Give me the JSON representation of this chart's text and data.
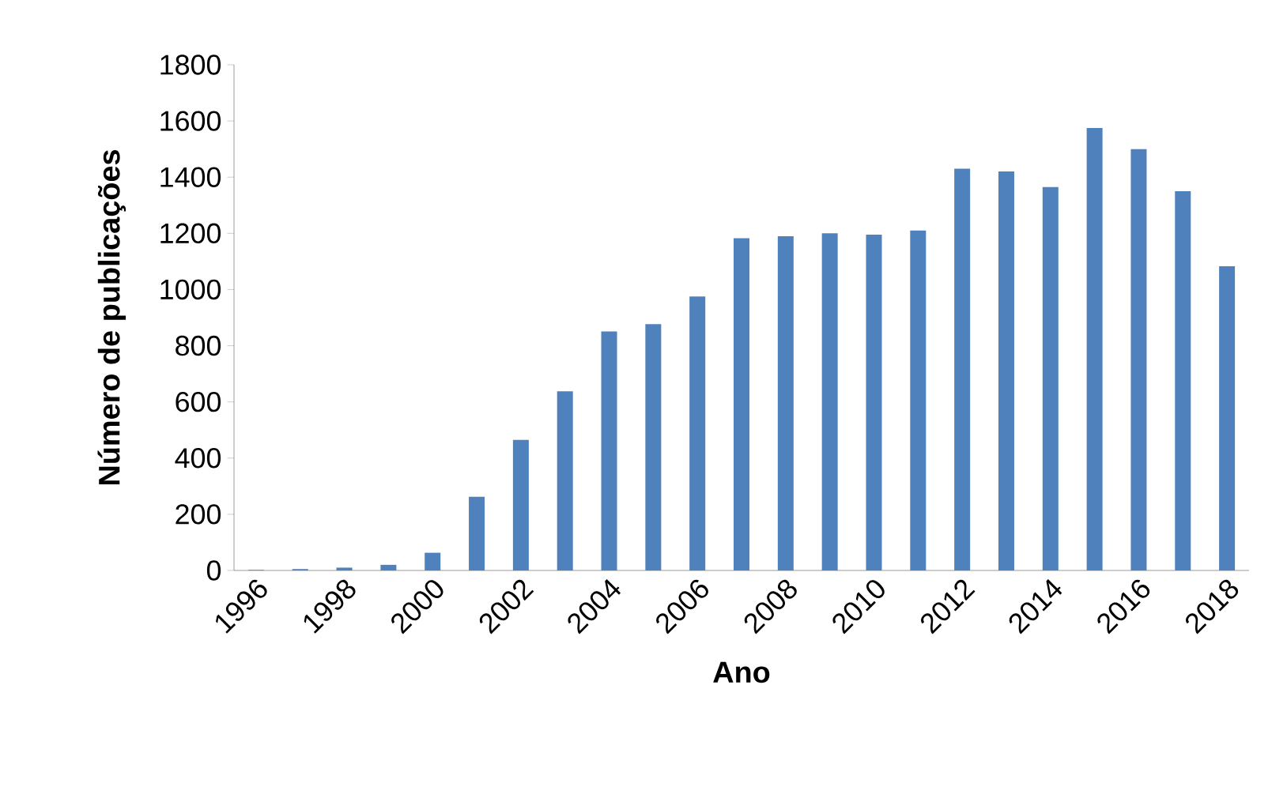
{
  "chart_data": {
    "type": "bar",
    "xlabel": "Ano",
    "ylabel": "Número de publicações",
    "categories": [
      "1996",
      null,
      "1998",
      null,
      "2000",
      null,
      "2002",
      null,
      "2004",
      null,
      "2006",
      null,
      "2008",
      null,
      "2010",
      null,
      "2012",
      null,
      "2014",
      null,
      "2016",
      null,
      "2018"
    ],
    "values": [
      2,
      5,
      10,
      20,
      63,
      262,
      465,
      638,
      851,
      877,
      975,
      1183,
      1190,
      1200,
      1195,
      1210,
      1430,
      1420,
      1365,
      1575,
      1500,
      1350,
      1083
    ],
    "color": "#4f81bd",
    "ylim": [
      0,
      1800
    ],
    "yticks": [
      0,
      200,
      400,
      600,
      800,
      1000,
      1200,
      1400,
      1600,
      1800
    ],
    "grid": false
  }
}
